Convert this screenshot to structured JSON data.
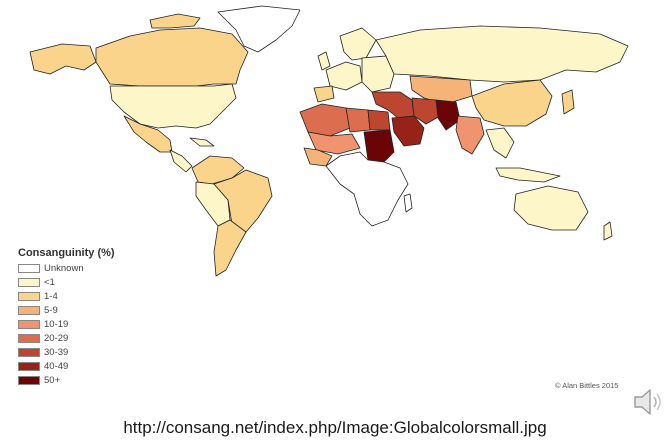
{
  "legend": {
    "title": "Consanguinity (%)",
    "items": [
      {
        "label": "Unknown",
        "color": "#ffffff"
      },
      {
        "label": "<1",
        "color": "#fdf6c9"
      },
      {
        "label": "1-4",
        "color": "#fbd48c"
      },
      {
        "label": "5-9",
        "color": "#f6b378"
      },
      {
        "label": "10-19",
        "color": "#f09470"
      },
      {
        "label": "20-29",
        "color": "#dc6d4e"
      },
      {
        "label": "30-39",
        "color": "#bd4630"
      },
      {
        "label": "40-49",
        "color": "#962318"
      },
      {
        "label": "50+",
        "color": "#6b0406"
      }
    ]
  },
  "credit": "© Alan Bittles 2015",
  "source_url": "http://consang.net/index.php/Image:Globalcolorsmall.jpg",
  "speaker_icon": "speaker-icon",
  "regions": {
    "canada": "#fbd48c",
    "alaska": "#fbd48c",
    "greenland": "#ffffff",
    "usa": "#fdf6c9",
    "mexico": "#fbd48c",
    "central_america": "#fdf6c9",
    "colombia_venezuela": "#fbd48c",
    "brazil": "#fbd48c",
    "peru_bolivia": "#fdf6c9",
    "southern_cone": "#fbd48c",
    "western_europe": "#fdf6c9",
    "uk_ireland": "#fdf6c9",
    "scandinavia": "#fdf6c9",
    "iberia": "#fbd48c",
    "eastern_europe": "#fdf6c9",
    "russia": "#fdf6c9",
    "north_africa_west": "#dc6d4e",
    "north_africa_mid": "#dc6d4e",
    "egypt": "#bd4630",
    "sudan": "#6b0406",
    "sahel": "#f09470",
    "west_africa": "#f6b378",
    "saudi_arabia": "#962318",
    "middle_east": "#bd4630",
    "iran": "#bd4630",
    "pakistan_afghan": "#6b0406",
    "central_asia": "#f6b378",
    "india": "#f09470",
    "china": "#fbd48c",
    "southeast_asia": "#fdf6c9",
    "japan": "#fbd48c",
    "indonesia": "#fdf6c9",
    "australia": "#fdf6c9",
    "sub_saharan_africa": "#ffffff",
    "madagascar": "#ffffff"
  }
}
